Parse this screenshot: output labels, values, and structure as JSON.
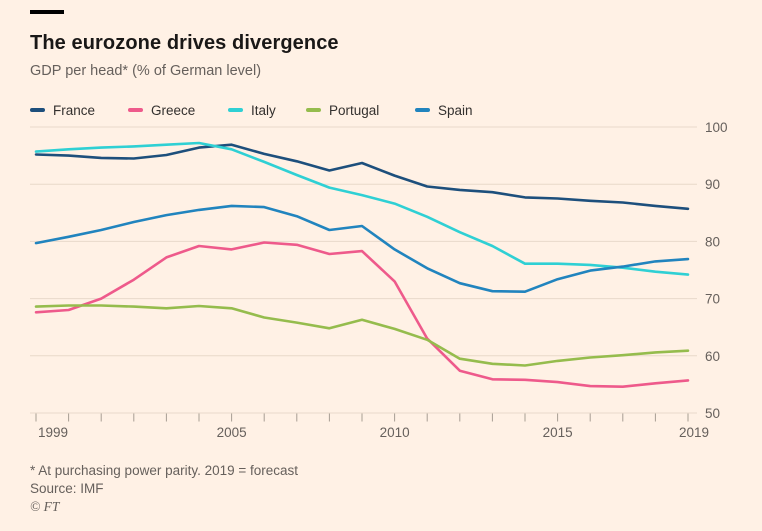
{
  "header": {
    "title": "The eurozone drives divergence",
    "subtitle": "GDP per head* (% of German level)"
  },
  "footer": {
    "footnote": "* At purchasing power parity. 2019 = forecast",
    "source": "Source: IMF",
    "copyright": "© FT"
  },
  "colors": {
    "background": "#FFF1E5",
    "title_text": "#1A1817",
    "muted_text": "#66605C",
    "legend_text": "#33302E",
    "gridline": "#E8D9CA",
    "tick": "#A79E93"
  },
  "chart_data": {
    "type": "line",
    "title": "The eurozone drives divergence",
    "subtitle": "GDP per head* (% of German level)",
    "x": [
      1999,
      2000,
      2001,
      2002,
      2003,
      2004,
      2005,
      2006,
      2007,
      2008,
      2009,
      2010,
      2011,
      2012,
      2013,
      2014,
      2015,
      2016,
      2017,
      2018,
      2019
    ],
    "xtick_labels": [
      1999,
      2005,
      2010,
      2015,
      2019
    ],
    "ylim": [
      50,
      100
    ],
    "yticks": [
      50,
      60,
      70,
      80,
      90,
      100
    ],
    "grid": "horizontal",
    "legend_position": "top",
    "series": [
      {
        "name": "France",
        "color": "#1D4F7C",
        "values": [
          95.2,
          95.0,
          94.6,
          94.5,
          95.1,
          96.4,
          96.9,
          95.3,
          94.0,
          92.4,
          93.7,
          91.5,
          89.6,
          89.0,
          88.6,
          87.7,
          87.5,
          87.1,
          86.8,
          86.2,
          85.7
        ]
      },
      {
        "name": "Greece",
        "color": "#EE5A8B",
        "values": [
          67.6,
          68.0,
          70.0,
          73.3,
          77.2,
          79.2,
          78.6,
          79.8,
          79.4,
          77.8,
          78.3,
          73.0,
          63.0,
          57.4,
          55.9,
          55.8,
          55.4,
          54.7,
          54.6,
          55.2,
          55.7
        ]
      },
      {
        "name": "Italy",
        "color": "#2FD0D4",
        "values": [
          95.7,
          96.1,
          96.4,
          96.6,
          96.9,
          97.2,
          96.1,
          93.9,
          91.6,
          89.4,
          88.1,
          86.6,
          84.3,
          81.6,
          79.2,
          76.1,
          76.1,
          75.9,
          75.4,
          74.7,
          74.2
        ]
      },
      {
        "name": "Portugal",
        "color": "#95BC4D",
        "values": [
          68.6,
          68.8,
          68.8,
          68.6,
          68.3,
          68.7,
          68.3,
          66.7,
          65.8,
          64.8,
          66.3,
          64.7,
          62.8,
          59.5,
          58.6,
          58.3,
          59.1,
          59.7,
          60.1,
          60.6,
          60.9
        ]
      },
      {
        "name": "Spain",
        "color": "#2184BE",
        "values": [
          79.7,
          80.8,
          82.0,
          83.4,
          84.6,
          85.5,
          86.2,
          86.0,
          84.4,
          82.0,
          82.7,
          78.6,
          75.3,
          72.7,
          71.3,
          71.2,
          73.4,
          74.9,
          75.6,
          76.5,
          76.9
        ]
      }
    ]
  }
}
